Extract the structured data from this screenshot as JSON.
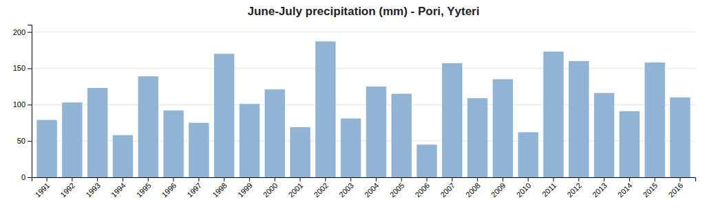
{
  "chart_data": {
    "type": "bar",
    "title": "June-July precipitation (mm) - Pori, Yyteri",
    "categories": [
      "1991",
      "1992",
      "1993",
      "1994",
      "1995",
      "1996",
      "1997",
      "1998",
      "1999",
      "2000",
      "2001",
      "2002",
      "2003",
      "2004",
      "2005",
      "2006",
      "2007",
      "2008",
      "2009",
      "2010",
      "2011",
      "2012",
      "2013",
      "2014",
      "2015",
      "2016"
    ],
    "values": [
      79,
      103,
      123,
      58,
      139,
      92,
      75,
      170,
      101,
      121,
      69,
      187,
      81,
      125,
      115,
      45,
      157,
      109,
      135,
      62,
      173,
      160,
      116,
      91,
      158,
      110
    ],
    "color": "#92B4D4",
    "ylim": [
      0,
      210
    ],
    "yticks": [
      0,
      50,
      100,
      150,
      200
    ],
    "grid": true
  }
}
